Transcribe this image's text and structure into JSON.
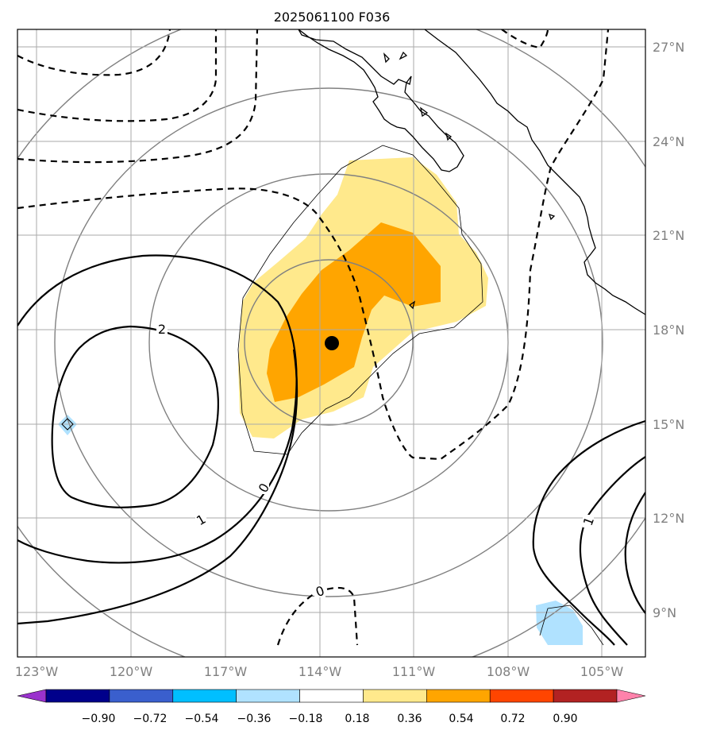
{
  "map": {
    "title": "2025061100 F036",
    "lon_labels": [
      "123°W",
      "120°W",
      "117°W",
      "114°W",
      "111°W",
      "108°W",
      "105°W"
    ],
    "lat_labels": [
      "27°N",
      "24°N",
      "21°N",
      "18°N",
      "15°N",
      "12°N",
      "9°N"
    ],
    "contour_labels": [
      "2",
      "1",
      "0",
      "0",
      "1"
    ],
    "storm_marker": {
      "lon": "113.6W",
      "lat": "17.6N"
    }
  },
  "colorbar": {
    "ticks": [
      "−0.90",
      "−0.72",
      "−0.54",
      "−0.36",
      "−0.18",
      "0.18",
      "0.36",
      "0.54",
      "0.72",
      "0.90"
    ],
    "colors": [
      "#9a32cd",
      "#00008b",
      "#3a5fcd",
      "#00bfff",
      "#b0e2ff",
      "#ffffff",
      "#ffe98c",
      "#ffa500",
      "#ff4500",
      "#b22222",
      "#ff82ab"
    ]
  }
}
